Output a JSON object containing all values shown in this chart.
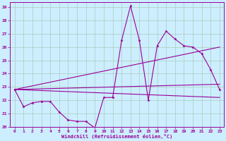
{
  "xlabel": "Windchill (Refroidissement éolien,°C)",
  "bg_color": "#cceeff",
  "grid_color": "#aaccbb",
  "line_color": "#990099",
  "xlim": [
    -0.5,
    23.5
  ],
  "ylim": [
    20,
    29.4
  ],
  "yticks": [
    20,
    21,
    22,
    23,
    24,
    25,
    26,
    27,
    28,
    29
  ],
  "xticks": [
    0,
    1,
    2,
    3,
    4,
    5,
    6,
    7,
    8,
    9,
    10,
    11,
    12,
    13,
    14,
    15,
    16,
    17,
    18,
    19,
    20,
    21,
    22,
    23
  ],
  "series1_x": [
    0,
    1,
    2,
    3,
    4,
    5,
    6,
    7,
    8,
    9,
    10,
    11,
    12,
    13,
    14,
    15,
    16,
    17,
    18,
    19,
    20,
    21,
    22,
    23
  ],
  "series1_y": [
    22.8,
    21.5,
    21.8,
    21.9,
    21.9,
    21.1,
    20.5,
    20.4,
    20.4,
    19.9,
    22.2,
    22.2,
    26.5,
    29.1,
    26.5,
    22.0,
    26.1,
    27.2,
    26.6,
    26.1,
    26.0,
    25.5,
    24.3,
    22.8
  ],
  "trend1_x": [
    0,
    23
  ],
  "trend1_y": [
    22.8,
    22.2
  ],
  "trend2_x": [
    0,
    23
  ],
  "trend2_y": [
    22.8,
    23.2
  ],
  "trend3_x": [
    0,
    23
  ],
  "trend3_y": [
    22.8,
    26.0
  ]
}
